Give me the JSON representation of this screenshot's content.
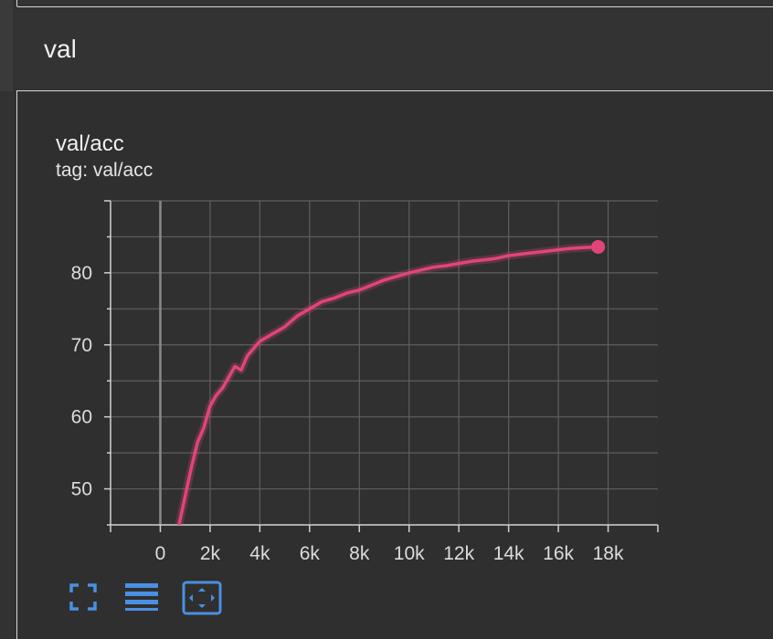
{
  "section": {
    "title": "val"
  },
  "card": {
    "title": "val/acc",
    "tag": "tag: val/acc"
  },
  "toolbar": {
    "icons": [
      "fullscreen-icon",
      "data-table-icon",
      "fit-domain-icon"
    ]
  },
  "colors": {
    "series": "#e0457a",
    "accent": "#4a90e2",
    "grid": "#5f5f5f",
    "background": "#323232"
  },
  "chart_data": {
    "type": "line",
    "title": "val/acc",
    "xlabel": "",
    "ylabel": "",
    "xlim": [
      -2000,
      20000
    ],
    "ylim": [
      45,
      90
    ],
    "x_ticks": [
      0,
      2000,
      4000,
      6000,
      8000,
      10000,
      12000,
      14000,
      16000,
      18000
    ],
    "x_tick_labels": [
      "0",
      "2k",
      "4k",
      "6k",
      "8k",
      "10k",
      "12k",
      "14k",
      "16k",
      "18k"
    ],
    "y_ticks": [
      50,
      60,
      70,
      80
    ],
    "y_tick_labels": [
      "50",
      "60",
      "70",
      "80"
    ],
    "grid": true,
    "series": [
      {
        "x": [
          750,
          1000,
          1250,
          1500,
          1750,
          2000,
          2250,
          2500,
          2750,
          3000,
          3250,
          3500,
          3750,
          4000,
          4250,
          4500,
          5000,
          5500,
          6000,
          6500,
          7000,
          7500,
          8000,
          8500,
          9000,
          9500,
          10000,
          10500,
          11000,
          11500,
          12000,
          12500,
          13000,
          13500,
          14000,
          14500,
          15000,
          15500,
          16000,
          16500,
          17000,
          17600
        ],
        "y": [
          45,
          49,
          53,
          56.5,
          58.5,
          61.5,
          63,
          64,
          65.5,
          67,
          66.5,
          68.5,
          69.5,
          70.5,
          71,
          71.5,
          72.5,
          74,
          75,
          76,
          76.5,
          77.2,
          77.6,
          78.3,
          79,
          79.5,
          80,
          80.4,
          80.8,
          81,
          81.3,
          81.6,
          81.8,
          82,
          82.4,
          82.6,
          82.8,
          83,
          83.2,
          83.4,
          83.5,
          83.6
        ]
      }
    ]
  }
}
